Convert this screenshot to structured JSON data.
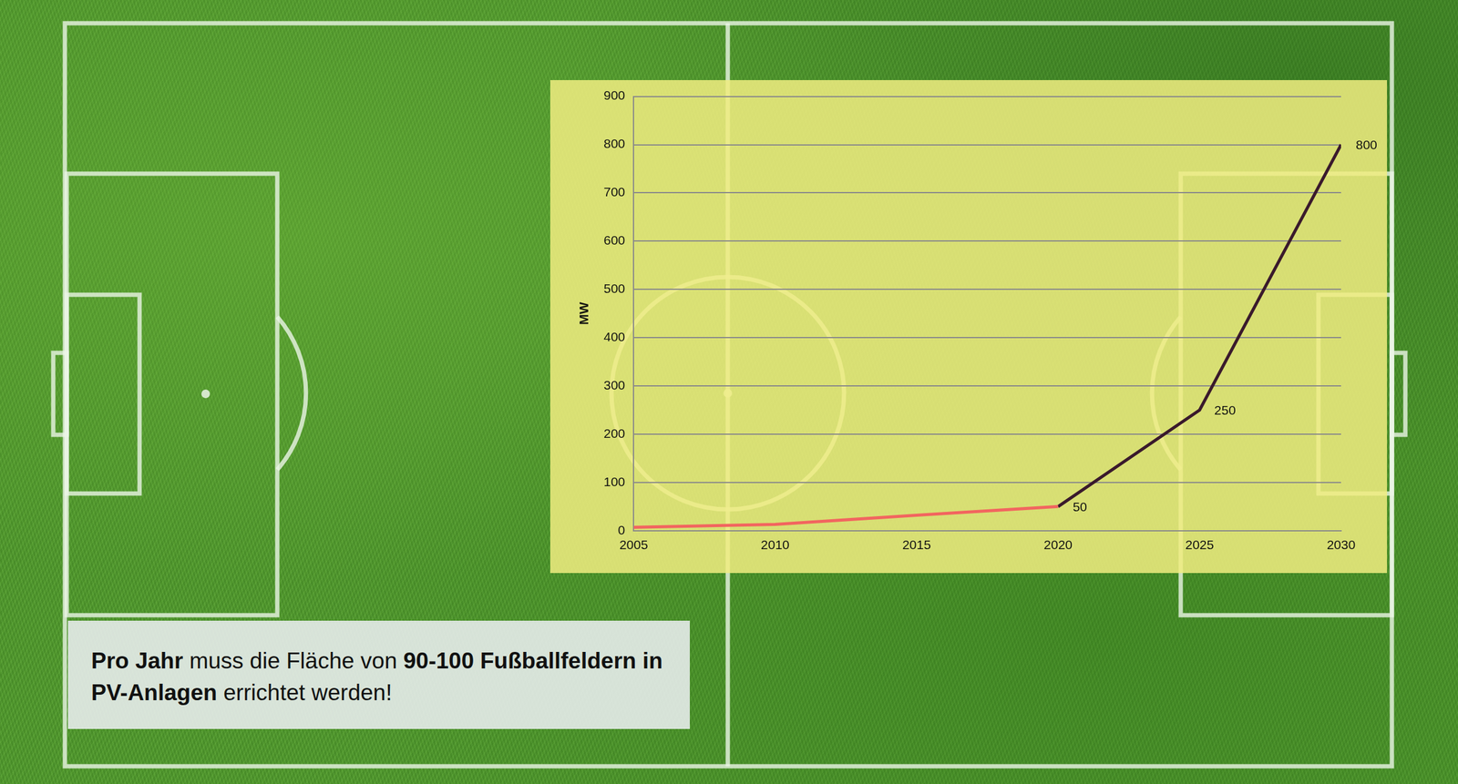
{
  "chart_data": {
    "type": "line",
    "x": [
      2005,
      2010,
      2015,
      2020,
      2025,
      2030
    ],
    "series": [
      {
        "color": "#f2655f",
        "values": [
          7,
          13,
          32,
          50,
          null,
          null
        ]
      },
      {
        "color": "#3a1a2c",
        "values": [
          null,
          null,
          null,
          50,
          250,
          800
        ],
        "data_labels": true
      }
    ],
    "y_label": "MW",
    "xlim": [
      2005,
      2030
    ],
    "xticks": [
      2005,
      2010,
      2015,
      2020,
      2025,
      2030
    ],
    "ylim": [
      0,
      900
    ],
    "yticks": [
      0,
      100,
      200,
      300,
      400,
      500,
      600,
      700,
      800,
      900
    ],
    "grid": "y"
  },
  "caption": {
    "parts": [
      {
        "text": "Pro Jahr",
        "bold": true
      },
      {
        "text": " muss die Fläche von ",
        "bold": false
      },
      {
        "text": "90-100 Fußballfeldern",
        "bold": true
      },
      {
        "text": " ",
        "bold": false
      },
      {
        "text": "in PV-Anlagen",
        "bold": true
      },
      {
        "text": " errichtet werden!",
        "bold": false
      }
    ]
  }
}
